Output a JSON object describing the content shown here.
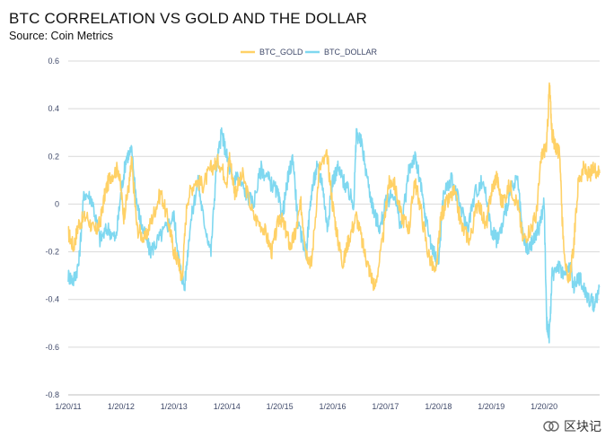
{
  "header": {
    "title": "BTC CORRELATION VS GOLD AND THE DOLLAR",
    "source": "Source: Coin Metrics"
  },
  "watermark": {
    "text": "区块记"
  },
  "chart_data": {
    "type": "line",
    "title": "BTC CORRELATION VS GOLD AND THE DOLLAR",
    "subtitle": "Source: Coin Metrics",
    "xlabel": "",
    "ylabel": "",
    "ylim": [
      -0.8,
      0.6
    ],
    "yticks": [
      -0.8,
      -0.6,
      -0.4,
      -0.2,
      0,
      0.2,
      0.4,
      0.6
    ],
    "ytick_labels": [
      "-0.8",
      "-0.6",
      "-0.4",
      "-0.2",
      "0",
      "0.2",
      "0.4",
      "0.6"
    ],
    "xlim": [
      2011.0,
      2021.05
    ],
    "xticks": [
      2011,
      2012,
      2013,
      2014,
      2015,
      2016,
      2017,
      2018,
      2019,
      2020
    ],
    "xtick_labels": [
      "1/20/11",
      "1/20/12",
      "1/20/13",
      "1/20/14",
      "1/20/15",
      "1/20/16",
      "1/20/17",
      "1/20/18",
      "1/20/19",
      "1/20/20"
    ],
    "grid": "horizontal",
    "legend": "top-center",
    "series": [
      {
        "name": "BTC_GOLD",
        "color": "#ffd166",
        "x": [
          2011.0,
          2011.1,
          2011.2,
          2011.35,
          2011.5,
          2011.6,
          2011.7,
          2011.8,
          2011.95,
          2012.05,
          2012.15,
          2012.2,
          2012.3,
          2012.45,
          2012.6,
          2012.75,
          2012.9,
          2013.0,
          2013.1,
          2013.15,
          2013.25,
          2013.4,
          2013.55,
          2013.7,
          2013.85,
          2014.0,
          2014.05,
          2014.15,
          2014.3,
          2014.5,
          2014.7,
          2014.85,
          2015.0,
          2015.1,
          2015.2,
          2015.3,
          2015.4,
          2015.5,
          2015.6,
          2015.75,
          2015.9,
          2016.0,
          2016.1,
          2016.2,
          2016.3,
          2016.45,
          2016.6,
          2016.7,
          2016.8,
          2016.95,
          2017.05,
          2017.15,
          2017.3,
          2017.45,
          2017.55,
          2017.65,
          2017.8,
          2017.95,
          2018.05,
          2018.15,
          2018.3,
          2018.45,
          2018.6,
          2018.75,
          2018.9,
          2019.0,
          2019.1,
          2019.2,
          2019.35,
          2019.5,
          2019.6,
          2019.75,
          2019.85,
          2019.95,
          2020.05,
          2020.1,
          2020.15,
          2020.2,
          2020.3,
          2020.35,
          2020.45,
          2020.55,
          2020.65,
          2020.75,
          2020.85,
          2020.95,
          2021.05
        ],
        "y": [
          -0.12,
          -0.18,
          -0.08,
          -0.05,
          -0.12,
          -0.08,
          0.05,
          0.12,
          0.15,
          -0.05,
          0.08,
          0.18,
          -0.1,
          -0.15,
          -0.05,
          0.05,
          -0.08,
          -0.2,
          -0.25,
          -0.32,
          0.02,
          0.1,
          0.08,
          0.15,
          0.18,
          0.1,
          0.2,
          0.05,
          0.12,
          -0.05,
          -0.1,
          -0.2,
          -0.05,
          -0.1,
          -0.18,
          -0.12,
          0.0,
          -0.2,
          -0.25,
          0.15,
          0.2,
          0.0,
          -0.15,
          -0.25,
          -0.15,
          -0.05,
          -0.2,
          -0.28,
          -0.35,
          -0.15,
          0.08,
          0.1,
          -0.05,
          -0.1,
          0.1,
          0.0,
          -0.2,
          -0.3,
          -0.05,
          0.0,
          0.05,
          -0.1,
          -0.15,
          0.02,
          -0.1,
          0.05,
          0.12,
          0.0,
          0.08,
          0.0,
          -0.15,
          -0.1,
          -0.05,
          0.2,
          0.25,
          0.5,
          0.3,
          0.25,
          0.2,
          -0.1,
          -0.35,
          -0.2,
          0.1,
          0.15,
          0.12,
          0.15,
          0.13
        ]
      },
      {
        "name": "BTC_DOLLAR",
        "color": "#7fd8f0",
        "x": [
          2011.0,
          2011.1,
          2011.2,
          2011.3,
          2011.45,
          2011.6,
          2011.75,
          2011.9,
          2012.0,
          2012.1,
          2012.2,
          2012.3,
          2012.4,
          2012.55,
          2012.7,
          2012.85,
          2013.0,
          2013.1,
          2013.2,
          2013.3,
          2013.45,
          2013.55,
          2013.7,
          2013.8,
          2013.9,
          2014.0,
          2014.1,
          2014.2,
          2014.35,
          2014.5,
          2014.65,
          2014.8,
          2014.95,
          2015.05,
          2015.15,
          2015.25,
          2015.35,
          2015.5,
          2015.6,
          2015.7,
          2015.8,
          2015.9,
          2016.0,
          2016.1,
          2016.2,
          2016.3,
          2016.4,
          2016.45,
          2016.55,
          2016.7,
          2016.8,
          2016.9,
          2017.0,
          2017.15,
          2017.3,
          2017.45,
          2017.55,
          2017.65,
          2017.75,
          2017.9,
          2018.0,
          2018.1,
          2018.25,
          2018.4,
          2018.55,
          2018.7,
          2018.85,
          2019.0,
          2019.1,
          2019.2,
          2019.35,
          2019.5,
          2019.6,
          2019.7,
          2019.8,
          2019.9,
          2020.0,
          2020.05,
          2020.1,
          2020.15,
          2020.25,
          2020.4,
          2020.5,
          2020.55,
          2020.65,
          2020.75,
          2020.85,
          2020.95,
          2021.05
        ],
        "y": [
          -0.3,
          -0.32,
          -0.25,
          0.05,
          0.02,
          -0.15,
          -0.1,
          -0.15,
          0.05,
          0.2,
          0.22,
          0.0,
          -0.1,
          -0.2,
          -0.15,
          -0.1,
          -0.05,
          -0.25,
          -0.35,
          -0.1,
          0.1,
          -0.05,
          -0.2,
          0.15,
          0.3,
          0.2,
          0.1,
          0.12,
          0.05,
          0.0,
          0.15,
          0.1,
          0.05,
          -0.05,
          0.1,
          0.2,
          -0.1,
          -0.2,
          0.05,
          0.15,
          0.1,
          -0.1,
          0.1,
          0.15,
          0.1,
          0.05,
          0.0,
          0.3,
          0.25,
          0.05,
          -0.05,
          -0.1,
          0.0,
          0.05,
          -0.1,
          0.15,
          0.2,
          0.1,
          -0.05,
          -0.2,
          -0.25,
          0.05,
          0.1,
          0.0,
          -0.1,
          0.05,
          0.1,
          -0.1,
          -0.15,
          -0.1,
          0.05,
          0.1,
          -0.15,
          -0.2,
          -0.15,
          -0.1,
          0.0,
          -0.5,
          -0.55,
          -0.3,
          -0.25,
          -0.3,
          -0.25,
          -0.35,
          -0.3,
          -0.35,
          -0.4,
          -0.42,
          -0.35
        ]
      }
    ]
  }
}
